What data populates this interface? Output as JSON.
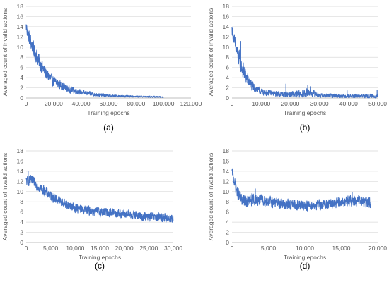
{
  "chart_data": [
    {
      "type": "line",
      "panel_label": "(a)",
      "xlabel": "Training epochs",
      "ylabel": "Averaged count of invalid actions",
      "xlim": [
        0,
        120000
      ],
      "ylim": [
        0,
        18
      ],
      "x_ticks": [
        0,
        20000,
        40000,
        60000,
        80000,
        100000,
        120000
      ],
      "x_tick_labels": [
        "0",
        "20,000",
        "40,000",
        "60,000",
        "80,000",
        "100,000",
        "120,000"
      ],
      "y_ticks": [
        0,
        2,
        4,
        6,
        8,
        10,
        12,
        14,
        16,
        18
      ],
      "y_tick_labels": [
        "0",
        "2",
        "4",
        "6",
        "8",
        "10",
        "12",
        "14",
        "16",
        "18"
      ],
      "grid": "horizontal",
      "series": [
        {
          "x": [
            0,
            2000,
            5000,
            10000,
            15000,
            20000,
            30000,
            40000,
            50000,
            60000,
            70000,
            80000,
            90000,
            100000
          ],
          "y": [
            14.0,
            12.0,
            9.8,
            6.8,
            4.6,
            3.3,
            1.8,
            1.1,
            0.7,
            0.45,
            0.35,
            0.3,
            0.25,
            0.2
          ],
          "noise": [
            1.2,
            1.4,
            1.5,
            1.4,
            1.2,
            1.0,
            0.7,
            0.5,
            0.35,
            0.25,
            0.2,
            0.15,
            0.15,
            0.12
          ],
          "spikes": []
        }
      ]
    },
    {
      "type": "line",
      "panel_label": "(b)",
      "xlabel": "Training epochs",
      "ylabel": "Averaged count of invalid actions",
      "xlim": [
        0,
        50000
      ],
      "ylim": [
        0,
        18
      ],
      "x_ticks": [
        0,
        10000,
        20000,
        30000,
        40000,
        50000
      ],
      "x_tick_labels": [
        "0",
        "10,000",
        "20,000",
        "30,000",
        "40,000",
        "50,000"
      ],
      "y_ticks": [
        0,
        2,
        4,
        6,
        8,
        10,
        12,
        14,
        16,
        18
      ],
      "y_tick_labels": [
        "0",
        "2",
        "4",
        "6",
        "8",
        "10",
        "12",
        "14",
        "16",
        "18"
      ],
      "grid": "horizontal",
      "series": [
        {
          "x": [
            0,
            1000,
            2000,
            3000,
            5000,
            7000,
            10000,
            15000,
            20000,
            25000,
            26500,
            30000,
            40000,
            50000
          ],
          "y": [
            13.5,
            10.5,
            8.5,
            6.5,
            4.0,
            2.2,
            1.2,
            0.8,
            0.7,
            0.8,
            1.2,
            0.5,
            0.4,
            0.4
          ],
          "noise": [
            1.0,
            1.6,
            1.8,
            1.8,
            1.5,
            1.0,
            0.6,
            0.5,
            0.6,
            0.8,
            0.9,
            0.4,
            0.35,
            0.4
          ],
          "spikes": [
            [
              3000,
              11.2
            ],
            [
              18500,
              2.8
            ],
            [
              26000,
              2.5
            ],
            [
              27000,
              2.3
            ],
            [
              39500,
              1.5
            ],
            [
              49800,
              1.6
            ]
          ]
        }
      ]
    },
    {
      "type": "line",
      "panel_label": "(c)",
      "xlabel": "Training epochs",
      "ylabel": "Averaged count of invalid actions",
      "xlim": [
        0,
        30000
      ],
      "ylim": [
        0,
        18
      ],
      "x_ticks": [
        0,
        5000,
        10000,
        15000,
        20000,
        25000,
        30000
      ],
      "x_tick_labels": [
        "0",
        "5,000",
        "10,000",
        "15,000",
        "20,000",
        "25,000",
        "30,000"
      ],
      "y_ticks": [
        0,
        2,
        4,
        6,
        8,
        10,
        12,
        14,
        16,
        18
      ],
      "y_tick_labels": [
        "0",
        "2",
        "4",
        "6",
        "8",
        "10",
        "12",
        "14",
        "16",
        "18"
      ],
      "grid": "horizontal",
      "series": [
        {
          "x": [
            0,
            1000,
            2500,
            5000,
            7500,
            10000,
            12500,
            15000,
            17500,
            20000,
            22500,
            25000,
            27500,
            30000
          ],
          "y": [
            12.0,
            12.2,
            11.0,
            9.2,
            7.8,
            6.8,
            6.3,
            6.0,
            5.9,
            5.6,
            5.3,
            5.0,
            4.9,
            4.7
          ],
          "noise": [
            0.9,
            1.0,
            1.0,
            1.0,
            0.9,
            0.9,
            0.9,
            0.9,
            0.9,
            0.9,
            0.9,
            0.9,
            0.9,
            0.9
          ],
          "spikes": [
            [
              400,
              14.0
            ]
          ]
        }
      ]
    },
    {
      "type": "line",
      "panel_label": "(d)",
      "xlabel": "Training epochs",
      "ylabel": "Averaged count of invalid actions",
      "xlim": [
        0,
        20000
      ],
      "ylim": [
        0,
        18
      ],
      "x_ticks": [
        0,
        5000,
        10000,
        15000,
        20000
      ],
      "x_tick_labels": [
        "0",
        "5,000",
        "10,000",
        "15,000",
        "20,000"
      ],
      "y_ticks": [
        0,
        2,
        4,
        6,
        8,
        10,
        12,
        14,
        16,
        18
      ],
      "y_tick_labels": [
        "0",
        "2",
        "4",
        "6",
        "8",
        "10",
        "12",
        "14",
        "16",
        "18"
      ],
      "grid": "horizontal",
      "series": [
        {
          "x": [
            0,
            300,
            700,
            1200,
            2000,
            3000,
            4000,
            6000,
            8000,
            10000,
            12000,
            14000,
            16000,
            17000,
            18000,
            19000
          ],
          "y": [
            14.0,
            12.0,
            10.0,
            8.5,
            8.0,
            8.5,
            8.3,
            7.8,
            7.4,
            7.3,
            7.4,
            7.6,
            8.1,
            8.3,
            8.0,
            7.8
          ],
          "noise": [
            0.6,
            1.0,
            1.2,
            1.3,
            1.2,
            1.2,
            1.1,
            1.0,
            1.0,
            1.0,
            1.0,
            1.0,
            1.1,
            1.1,
            1.0,
            1.0
          ],
          "spikes": [
            [
              3200,
              10.6
            ],
            [
              16500,
              9.9
            ]
          ]
        }
      ]
    }
  ],
  "style": {
    "line_color": "#4472c4",
    "grid_color": "#d9d9d9",
    "axis_color": "#bfbfbf",
    "text_color": "#595959",
    "label_color": "#000000"
  }
}
